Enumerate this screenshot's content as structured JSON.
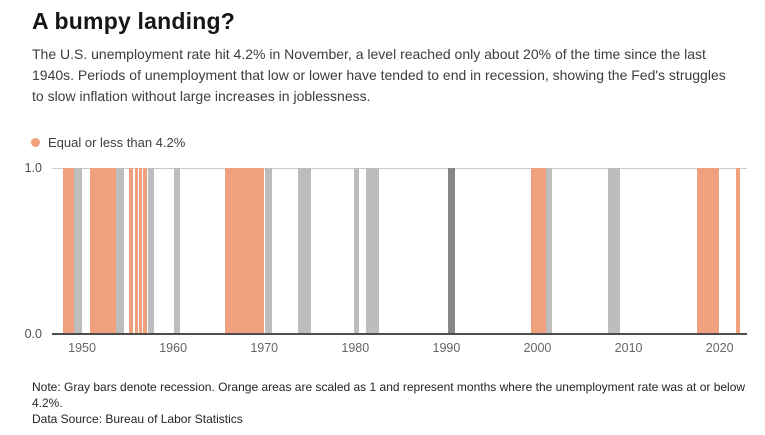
{
  "header": {
    "title": "A bumpy landing?",
    "description": "The U.S. unemployment rate hit 4.2% in November, a level reached only about 20% of the time since the last 1940s. Periods of unemployment that low or lower have tended to end in recession, showing the Fed's struggles to slow inflation without large increases in joblessness."
  },
  "legend": {
    "label": "Equal or less than 4.2%"
  },
  "colors": {
    "orange_band": "#F1A07D",
    "recession_gray": "#BDBDBD",
    "recession_dark_gray": "#878787",
    "axis_line": "#4D4D4D",
    "gridline": "#CCCCCC"
  },
  "chart_data": {
    "type": "area",
    "subtype": "timeline-interval-bands",
    "x_domain": [
      1946.7,
      2023.0
    ],
    "ylim": [
      0,
      1
    ],
    "grid": "top gridline at y=1.0 only",
    "legend_position": "above chart, left",
    "legend": "Equal or less than 4.2%",
    "x_tick_labels": [
      "1950",
      "1960",
      "1970",
      "1980",
      "1990",
      "2000",
      "2010",
      "2020"
    ],
    "x_tick_years": [
      1950,
      1960,
      1970,
      1980,
      1990,
      2000,
      2010,
      2020
    ],
    "y_tick_labels": [
      "1.0",
      "0.0"
    ],
    "series": [
      {
        "name": "unemployment-at-or-below-4.2-percent",
        "role": "orange-band",
        "color": "#F1A07D",
        "value": 1,
        "intervals": [
          [
            1947.91,
            1949.12
          ],
          [
            1950.88,
            1953.73
          ],
          [
            1955.16,
            1955.6
          ],
          [
            1955.82,
            1956.1
          ],
          [
            1956.26,
            1956.53
          ],
          [
            1956.7,
            1957.14
          ],
          [
            1965.7,
            1969.99
          ],
          [
            1999.31,
            2000.96
          ],
          [
            2017.54,
            2019.96
          ],
          [
            2021.83,
            2022.27
          ]
        ]
      },
      {
        "name": "recession",
        "role": "gray-band",
        "color": "#BDBDBD",
        "value": 1,
        "intervals": [
          [
            1949.12,
            1950.0
          ],
          [
            1953.73,
            1954.61
          ],
          [
            1957.25,
            1957.91
          ],
          [
            1960.1,
            1960.76
          ],
          [
            1970.04,
            1970.81
          ],
          [
            1973.72,
            1975.15
          ],
          [
            1979.87,
            1980.42
          ],
          [
            1981.19,
            1982.62
          ],
          [
            2000.96,
            2001.56
          ],
          [
            2007.77,
            2009.09
          ]
        ]
      },
      {
        "name": "recession-1990-91",
        "role": "gray-band-dark",
        "color": "#878787",
        "value": 1,
        "intervals": [
          [
            1990.2,
            1990.97
          ]
        ]
      }
    ]
  },
  "footer": {
    "note": "Note: Gray bars denote recession. Orange areas are scaled as 1 and represent months where the unemployment rate was at or below 4.2%.",
    "source": "Data Source: Bureau of Labor Statistics"
  }
}
